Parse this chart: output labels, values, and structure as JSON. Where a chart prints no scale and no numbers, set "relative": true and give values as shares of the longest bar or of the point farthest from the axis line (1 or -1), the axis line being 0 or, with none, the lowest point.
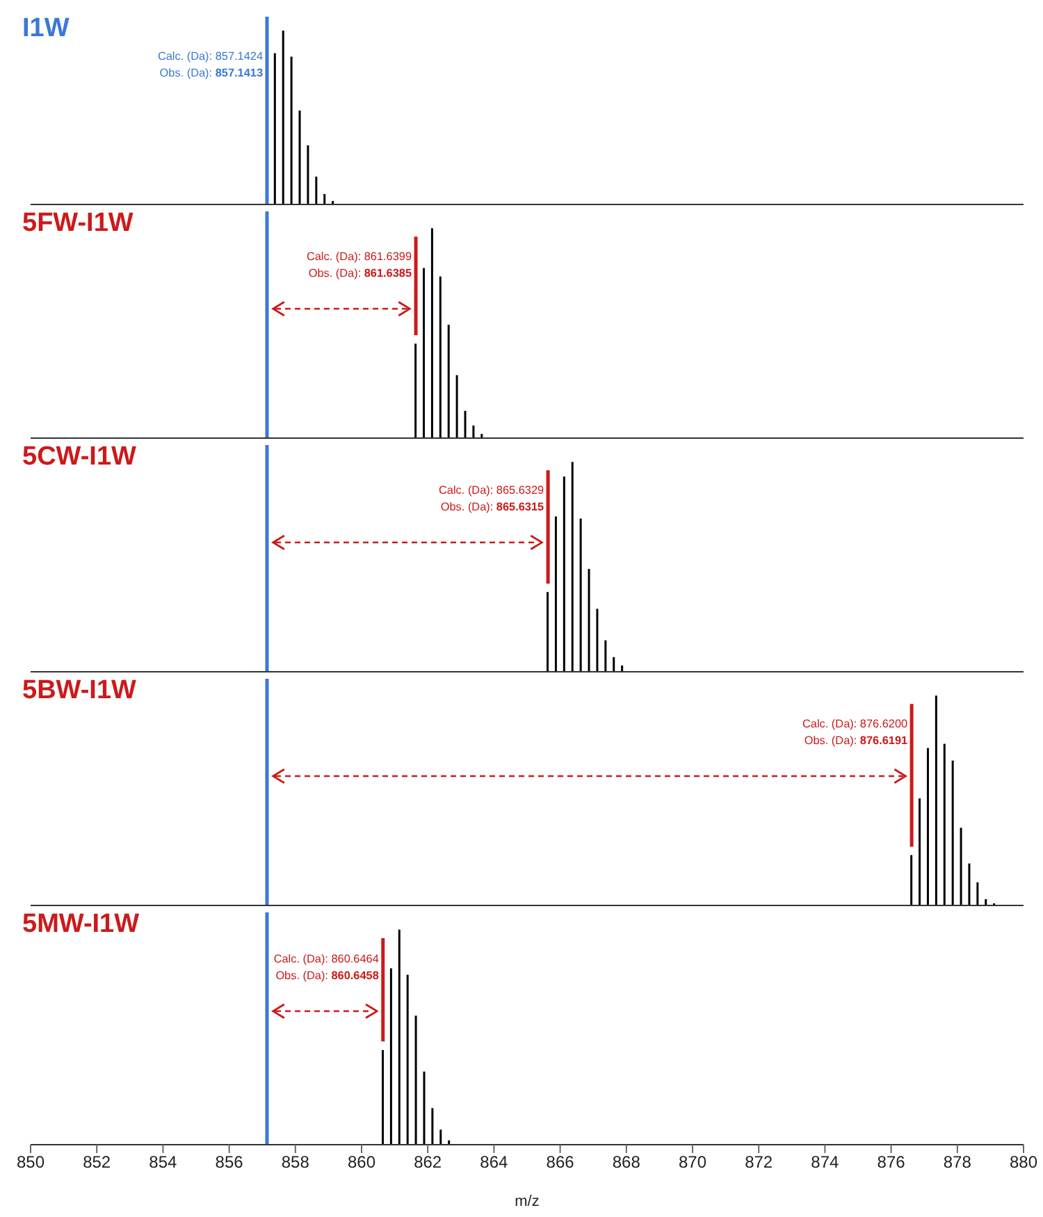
{
  "chart_data": [
    {
      "type": "bar",
      "title": "I1W",
      "relative": true,
      "xlim": [
        850,
        880
      ],
      "tick_labels": false,
      "x": [
        857.39,
        857.64,
        857.89,
        858.14,
        858.39,
        858.64,
        858.89,
        859.14
      ],
      "series": [
        {
          "color": "#000000",
          "values": [
            0.87,
            1,
            0.85,
            0.54,
            0.34,
            0.16,
            0.06,
            0.02
          ]
        }
      ],
      "ref_lines": [
        {
          "axis": "x",
          "value": 857.1424,
          "color": "#3b78d8"
        }
      ],
      "annotations": [
        {
          "text": "Calc. (Da): 857.1424",
          "x": 857.1424
        },
        {
          "text": "Obs. (Da): 857.1413",
          "x": 857.1424
        }
      ]
    },
    {
      "type": "bar",
      "title": "5FW-I1W",
      "relative": true,
      "xlim": [
        850,
        880
      ],
      "tick_labels": false,
      "x": [
        861.64,
        861.89,
        862.14,
        862.39,
        862.64,
        862.89,
        863.14,
        863.39,
        863.64
      ],
      "series": [
        {
          "color": "#000000",
          "values": [
            0.45,
            0.81,
            1,
            0.77,
            0.54,
            0.3,
            0.13,
            0.06,
            0.02
          ]
        }
      ],
      "ref_lines": [
        {
          "axis": "x",
          "value": 857.1424,
          "color": "#3b78d8"
        },
        {
          "axis": "x",
          "value": 861.6399,
          "color": "#cc1a1a"
        }
      ],
      "annotations": [
        {
          "text": "Calc. (Da): 861.6399",
          "x": 861.6399
        },
        {
          "text": "Obs. (Da): 861.6385",
          "x": 861.6399
        }
      ]
    },
    {
      "type": "bar",
      "title": "5CW-I1W",
      "relative": true,
      "xlim": [
        850,
        880
      ],
      "tick_labels": false,
      "x": [
        865.63,
        865.88,
        866.13,
        866.38,
        866.63,
        866.88,
        867.13,
        867.38,
        867.63,
        867.88
      ],
      "series": [
        {
          "color": "#000000",
          "values": [
            0.38,
            0.74,
            0.93,
            1,
            0.73,
            0.49,
            0.3,
            0.15,
            0.07,
            0.03
          ]
        }
      ],
      "ref_lines": [
        {
          "axis": "x",
          "value": 857.1424,
          "color": "#3b78d8"
        },
        {
          "axis": "x",
          "value": 865.6329,
          "color": "#cc1a1a"
        }
      ],
      "annotations": [
        {
          "text": "Calc. (Da): 865.6329",
          "x": 865.6329
        },
        {
          "text": "Obs. (Da): 865.6315",
          "x": 865.6329
        }
      ]
    },
    {
      "type": "bar",
      "title": "5BW-I1W",
      "relative": true,
      "xlim": [
        850,
        880
      ],
      "tick_labels": false,
      "x": [
        876.62,
        876.87,
        877.12,
        877.37,
        877.62,
        877.87,
        878.12,
        878.37,
        878.62,
        878.87,
        879.12
      ],
      "series": [
        {
          "color": "#000000",
          "values": [
            0.24,
            0.51,
            0.75,
            1,
            0.77,
            0.69,
            0.37,
            0.2,
            0.11,
            0.03,
            0.01
          ]
        }
      ],
      "ref_lines": [
        {
          "axis": "x",
          "value": 857.1424,
          "color": "#3b78d8"
        },
        {
          "axis": "x",
          "value": 876.62,
          "color": "#cc1a1a"
        }
      ],
      "annotations": [
        {
          "text": "Calc. (Da): 876.6200",
          "x": 876.62
        },
        {
          "text": "Obs. (Da): 876.6191",
          "x": 876.62
        }
      ]
    },
    {
      "type": "bar",
      "title": "5MW-I1W",
      "relative": true,
      "xlim": [
        850,
        880
      ],
      "tick_labels": "x",
      "xlabel": "m/z",
      "xticks": [
        850,
        852,
        854,
        856,
        858,
        860,
        862,
        864,
        866,
        868,
        870,
        872,
        874,
        876,
        878,
        880
      ],
      "x": [
        860.65,
        860.9,
        861.15,
        861.4,
        861.65,
        861.9,
        862.15,
        862.4,
        862.65
      ],
      "series": [
        {
          "color": "#000000",
          "values": [
            0.44,
            0.82,
            1,
            0.79,
            0.6,
            0.34,
            0.17,
            0.07,
            0.02
          ]
        }
      ],
      "ref_lines": [
        {
          "axis": "x",
          "value": 857.1424,
          "color": "#3b78d8"
        },
        {
          "axis": "x",
          "value": 860.6464,
          "color": "#cc1a1a"
        }
      ],
      "annotations": [
        {
          "text": "Calc. (Da): 860.6464",
          "x": 860.6464
        },
        {
          "text": "Obs. (Da): 860.6458",
          "x": 860.6464
        }
      ]
    }
  ]
}
